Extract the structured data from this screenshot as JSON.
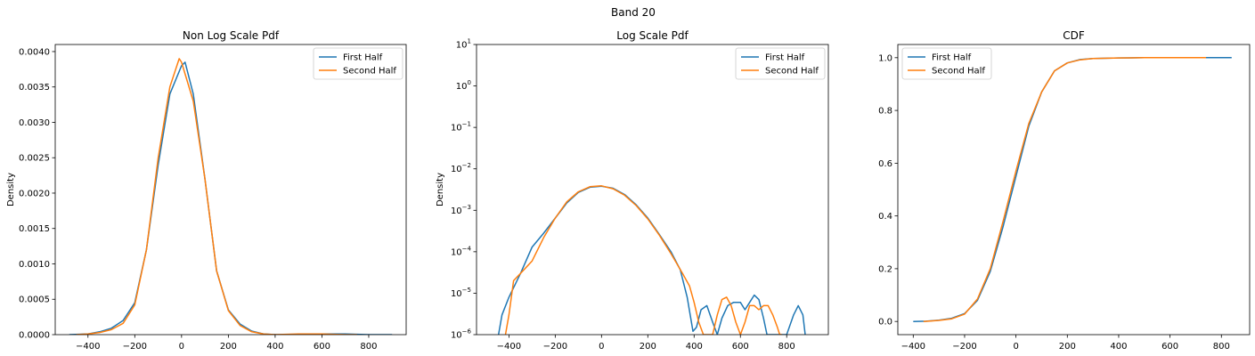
{
  "figure": {
    "suptitle": "Band 20"
  },
  "colors": {
    "first_half": "#1f77b4",
    "second_half": "#ff7f0e"
  },
  "chart_data": [
    {
      "type": "line",
      "title": "Non Log Scale Pdf",
      "xlabel": "",
      "ylabel": "Density",
      "yscale": "linear",
      "xlim": [
        -540,
        960
      ],
      "ylim": [
        0,
        0.0041
      ],
      "xticks": [
        -400,
        -200,
        0,
        200,
        400,
        600,
        800
      ],
      "xtick_labels": [
        "−400",
        "−200",
        "0",
        "200",
        "400",
        "600",
        "800"
      ],
      "yticks": [
        0,
        0.0005,
        0.001,
        0.0015,
        0.002,
        0.0025,
        0.003,
        0.0035,
        0.004
      ],
      "ytick_labels": [
        "0.0000",
        "0.0005",
        "0.0010",
        "0.0015",
        "0.0020",
        "0.0025",
        "0.0030",
        "0.0035",
        "0.0040"
      ],
      "grid": false,
      "legend": "upper right",
      "series": [
        {
          "name": "First Half",
          "x": [
            -480,
            -400,
            -350,
            -300,
            -250,
            -200,
            -150,
            -100,
            -50,
            0,
            15,
            50,
            100,
            150,
            200,
            250,
            300,
            350,
            400,
            500,
            600,
            700,
            800,
            900
          ],
          "y": [
            0.0,
            1e-05,
            4e-05,
            9e-05,
            0.0002,
            0.00045,
            0.0012,
            0.0024,
            0.0034,
            0.0038,
            0.00385,
            0.0034,
            0.0022,
            0.0009,
            0.00035,
            0.00015,
            5e-05,
            1e-05,
            0.0,
            0.0,
            1e-05,
            1e-05,
            0.0,
            0.0
          ]
        },
        {
          "name": "Second Half",
          "x": [
            -450,
            -400,
            -350,
            -300,
            -250,
            -200,
            -150,
            -100,
            -50,
            -10,
            0,
            50,
            100,
            150,
            200,
            250,
            300,
            350,
            400,
            500,
            600,
            700,
            750
          ],
          "y": [
            0.0,
            1e-05,
            3e-05,
            7e-05,
            0.00016,
            0.00042,
            0.0012,
            0.0025,
            0.0035,
            0.0039,
            0.00385,
            0.0033,
            0.0022,
            0.0009,
            0.00034,
            0.00013,
            4e-05,
            1e-05,
            0.0,
            1e-05,
            1e-05,
            0.0,
            0.0
          ]
        }
      ]
    },
    {
      "type": "line",
      "title": "Log Scale Pdf",
      "xlabel": "",
      "ylabel": "Density",
      "yscale": "log",
      "xlim": [
        -540,
        980
      ],
      "ylim": [
        1e-06,
        10
      ],
      "xticks": [
        -400,
        -200,
        0,
        200,
        400,
        600,
        800
      ],
      "xtick_labels": [
        "−400",
        "−200",
        "0",
        "200",
        "400",
        "600",
        "800"
      ],
      "yticks": [
        -6,
        -5,
        -4,
        -3,
        -2,
        -1,
        0,
        1
      ],
      "ytick_labels": [
        "10^-6",
        "10^-5",
        "10^-4",
        "10^-3",
        "10^-2",
        "10^-1",
        "10^0",
        "10^1"
      ],
      "grid": false,
      "legend": "upper right",
      "series": [
        {
          "name": "First Half",
          "x": [
            -445,
            -430,
            -400,
            -350,
            -300,
            -250,
            -200,
            -150,
            -100,
            -50,
            0,
            50,
            100,
            150,
            200,
            250,
            300,
            340,
            370,
            395,
            410,
            430,
            455,
            480,
            500,
            520,
            545,
            570,
            600,
            620,
            640,
            660,
            680,
            700,
            715,
            740,
            760,
            780,
            800,
            830,
            850,
            870,
            880
          ],
          "y": [
            1e-06,
            3e-06,
            8e-06,
            3e-05,
            0.00013,
            0.00028,
            0.00065,
            0.0015,
            0.0027,
            0.0036,
            0.0038,
            0.0034,
            0.0024,
            0.00135,
            0.00065,
            0.00026,
            0.0001,
            3.7e-05,
            8e-06,
            1.2e-06,
            1.5e-06,
            4e-06,
            5e-06,
            2e-06,
            1e-06,
            2.5e-06,
            5e-06,
            6e-06,
            6e-06,
            4e-06,
            6e-06,
            9e-06,
            7e-06,
            2.5e-06,
            1e-06,
            1e-06,
            1e-06,
            1e-06,
            1e-06,
            3e-06,
            5e-06,
            3e-06,
            1e-06
          ]
        },
        {
          "name": "Second Half",
          "x": [
            -415,
            -400,
            -380,
            -350,
            -300,
            -250,
            -200,
            -150,
            -100,
            -50,
            0,
            50,
            100,
            150,
            200,
            250,
            300,
            350,
            380,
            400,
            420,
            440,
            460,
            480,
            500,
            520,
            540,
            560,
            580,
            600,
            620,
            640,
            660,
            680,
            700,
            720,
            740,
            760,
            770,
            780
          ],
          "y": [
            1e-06,
            3e-06,
            2e-05,
            3e-05,
            6e-05,
            0.00022,
            0.00065,
            0.0016,
            0.0028,
            0.0037,
            0.0039,
            0.0033,
            0.0023,
            0.0013,
            0.00062,
            0.00025,
            9e-05,
            3e-05,
            1.5e-05,
            6e-06,
            2e-06,
            1e-06,
            1e-06,
            1e-06,
            3e-06,
            7e-06,
            8e-06,
            5e-06,
            2e-06,
            1e-06,
            2e-06,
            5e-06,
            5e-06,
            4e-06,
            5e-06,
            5e-06,
            3e-06,
            1.5e-06,
            1e-06,
            1e-06
          ]
        }
      ]
    },
    {
      "type": "line",
      "title": "CDF",
      "xlabel": "",
      "ylabel": "",
      "yscale": "linear",
      "xlim": [
        -460,
        910
      ],
      "ylim": [
        -0.05,
        1.05
      ],
      "xticks": [
        -400,
        -200,
        0,
        200,
        400,
        600,
        800
      ],
      "xtick_labels": [
        "−400",
        "−200",
        "0",
        "200",
        "400",
        "600",
        "800"
      ],
      "yticks": [
        0,
        0.2,
        0.4,
        0.6,
        0.8,
        1.0
      ],
      "ytick_labels": [
        "0.0",
        "0.2",
        "0.4",
        "0.6",
        "0.8",
        "1.0"
      ],
      "grid": false,
      "legend": "upper left",
      "series": [
        {
          "name": "First Half",
          "x": [
            -400,
            -350,
            -300,
            -250,
            -200,
            -150,
            -100,
            -50,
            0,
            50,
            100,
            150,
            200,
            250,
            300,
            400,
            500,
            600,
            700,
            800,
            840
          ],
          "y": [
            0.0,
            0.001,
            0.005,
            0.012,
            0.03,
            0.08,
            0.19,
            0.36,
            0.55,
            0.74,
            0.87,
            0.95,
            0.98,
            0.993,
            0.997,
            0.999,
            1.0,
            1.0,
            1.0,
            1.0,
            1.0
          ]
        },
        {
          "name": "Second Half",
          "x": [
            -360,
            -300,
            -250,
            -200,
            -150,
            -100,
            -50,
            0,
            50,
            100,
            150,
            200,
            250,
            300,
            400,
            500,
            600,
            700,
            740
          ],
          "y": [
            0.0,
            0.004,
            0.01,
            0.028,
            0.085,
            0.2,
            0.38,
            0.57,
            0.75,
            0.87,
            0.95,
            0.98,
            0.992,
            0.997,
            0.999,
            1.0,
            1.0,
            1.0,
            1.0
          ]
        }
      ]
    }
  ]
}
